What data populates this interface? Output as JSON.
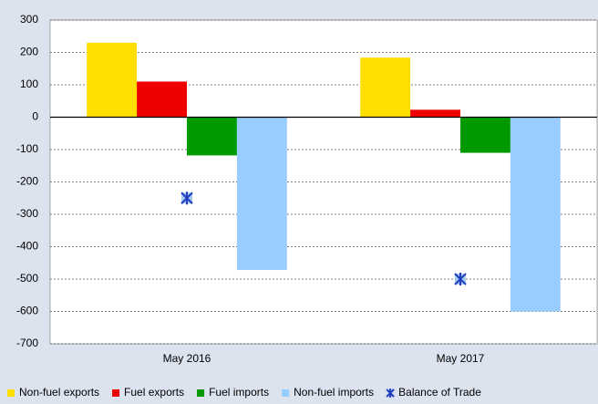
{
  "chart_data": {
    "type": "bar",
    "categories": [
      "May 2016",
      "May 2017"
    ],
    "series": [
      {
        "name": "Non-fuel exports",
        "color": "#ffdf00",
        "values": [
          230,
          184
        ]
      },
      {
        "name": "Fuel exports",
        "color": "#ee0000",
        "values": [
          110,
          23
        ]
      },
      {
        "name": "Fuel imports",
        "color": "#009900",
        "values": [
          -118,
          -110
        ]
      },
      {
        "name": "Non-fuel imports",
        "color": "#99ccff",
        "values": [
          -472,
          -600
        ]
      },
      {
        "name": "Balance of Trade",
        "color": "#1f3fbf",
        "type": "marker",
        "values": [
          -250,
          -500
        ]
      }
    ],
    "ylim": [
      -700,
      300
    ],
    "yticks": [
      -700,
      -600,
      -500,
      -400,
      -300,
      -200,
      -100,
      0,
      100,
      200,
      300
    ],
    "grid": true
  }
}
